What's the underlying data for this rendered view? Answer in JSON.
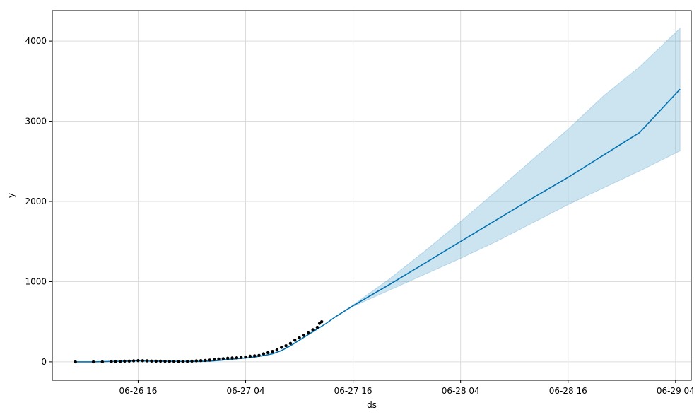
{
  "chart_data": {
    "type": "line",
    "xlabel": "ds",
    "ylabel": "y",
    "xlim": [
      "2020-06-26 06:25",
      "2020-06-29 05:45"
    ],
    "ylim": [
      -230,
      4380
    ],
    "grid": true,
    "colors": {
      "forecast_line": "#0072B2",
      "interval_fill": "#0072B2",
      "observed_points": "#000000",
      "grid": "#dcdcdc"
    },
    "x_ticks": [
      {
        "value": "2020-06-26 16:00",
        "label": "06-26 16"
      },
      {
        "value": "2020-06-27 04:00",
        "label": "06-27 04"
      },
      {
        "value": "2020-06-27 16:00",
        "label": "06-27 16"
      },
      {
        "value": "2020-06-28 04:00",
        "label": "06-28 04"
      },
      {
        "value": "2020-06-28 16:00",
        "label": "06-28 16"
      },
      {
        "value": "2020-06-29 04:00",
        "label": "06-29 04"
      }
    ],
    "y_ticks": [
      {
        "value": 0,
        "label": "0"
      },
      {
        "value": 1000,
        "label": "1000"
      },
      {
        "value": 2000,
        "label": "2000"
      },
      {
        "value": 3000,
        "label": "3000"
      },
      {
        "value": 4000,
        "label": "4000"
      }
    ],
    "series": [
      {
        "kind": "forecast",
        "x": [
          "2020-06-26 09:00",
          "2020-06-26 11:00",
          "2020-06-26 13:00",
          "2020-06-26 15:00",
          "2020-06-26 16:00",
          "2020-06-26 17:00",
          "2020-06-26 19:00",
          "2020-06-26 21:00",
          "2020-06-26 23:00",
          "2020-06-27 00:00",
          "2020-06-27 01:00",
          "2020-06-27 02:00",
          "2020-06-27 03:00",
          "2020-06-27 04:00",
          "2020-06-27 05:00",
          "2020-06-27 06:00",
          "2020-06-27 07:00",
          "2020-06-27 08:00",
          "2020-06-27 09:00",
          "2020-06-27 10:00",
          "2020-06-27 11:00",
          "2020-06-27 12:00",
          "2020-06-27 13:00",
          "2020-06-27 14:00",
          "2020-06-27 16:00",
          "2020-06-27 20:00",
          "2020-06-28 00:00",
          "2020-06-28 04:00",
          "2020-06-28 08:00",
          "2020-06-28 12:00",
          "2020-06-28 16:00",
          "2020-06-28 20:00",
          "2020-06-29 00:00",
          "2020-06-29 04:30"
        ],
        "y": [
          0,
          0,
          5,
          10,
          15,
          10,
          8,
          5,
          5,
          10,
          18,
          28,
          38,
          48,
          60,
          78,
          100,
          140,
          200,
          270,
          340,
          410,
          480,
          560,
          700,
          960,
          1230,
          1500,
          1770,
          2040,
          2300,
          2580,
          2860,
          3400
        ]
      },
      {
        "kind": "interval",
        "x": [
          "2020-06-27 14:00",
          "2020-06-27 16:00",
          "2020-06-27 20:00",
          "2020-06-28 00:00",
          "2020-06-28 04:00",
          "2020-06-28 08:00",
          "2020-06-28 12:00",
          "2020-06-28 16:00",
          "2020-06-28 20:00",
          "2020-06-29 00:00",
          "2020-06-29 04:30"
        ],
        "upper": [
          560,
          710,
          1030,
          1380,
          1750,
          2130,
          2520,
          2900,
          3320,
          3680,
          4160
        ],
        "lower": [
          560,
          690,
          890,
          1090,
          1290,
          1500,
          1730,
          1960,
          2170,
          2380,
          2630
        ]
      },
      {
        "kind": "observed",
        "x": [
          "2020-06-26 09:00",
          "2020-06-26 11:00",
          "2020-06-26 12:00",
          "2020-06-26 13:00",
          "2020-06-26 13:30",
          "2020-06-26 14:00",
          "2020-06-26 14:30",
          "2020-06-26 15:00",
          "2020-06-26 15:30",
          "2020-06-26 16:00",
          "2020-06-26 16:30",
          "2020-06-26 17:00",
          "2020-06-26 17:30",
          "2020-06-26 18:00",
          "2020-06-26 18:30",
          "2020-06-26 19:00",
          "2020-06-26 19:30",
          "2020-06-26 20:00",
          "2020-06-26 20:30",
          "2020-06-26 21:00",
          "2020-06-26 21:30",
          "2020-06-26 22:00",
          "2020-06-26 22:30",
          "2020-06-26 23:00",
          "2020-06-26 23:30",
          "2020-06-27 00:00",
          "2020-06-27 00:30",
          "2020-06-27 01:00",
          "2020-06-27 01:30",
          "2020-06-27 02:00",
          "2020-06-27 02:30",
          "2020-06-27 03:00",
          "2020-06-27 03:30",
          "2020-06-27 04:00",
          "2020-06-27 04:30",
          "2020-06-27 05:00",
          "2020-06-27 05:30",
          "2020-06-27 06:00",
          "2020-06-27 06:30",
          "2020-06-27 07:00",
          "2020-06-27 07:30",
          "2020-06-27 08:00",
          "2020-06-27 08:30",
          "2020-06-27 09:00",
          "2020-06-27 09:30",
          "2020-06-27 10:00",
          "2020-06-27 10:30",
          "2020-06-27 11:00",
          "2020-06-27 11:30",
          "2020-06-27 12:00",
          "2020-06-27 12:15",
          "2020-06-27 12:30"
        ],
        "y": [
          0,
          0,
          0,
          2,
          3,
          5,
          8,
          10,
          12,
          15,
          14,
          12,
          10,
          8,
          9,
          7,
          6,
          5,
          4,
          3,
          5,
          8,
          12,
          15,
          18,
          22,
          30,
          35,
          40,
          45,
          48,
          50,
          55,
          60,
          70,
          75,
          80,
          100,
          115,
          130,
          150,
          180,
          200,
          230,
          270,
          300,
          330,
          360,
          400,
          430,
          480,
          500
        ]
      }
    ]
  }
}
